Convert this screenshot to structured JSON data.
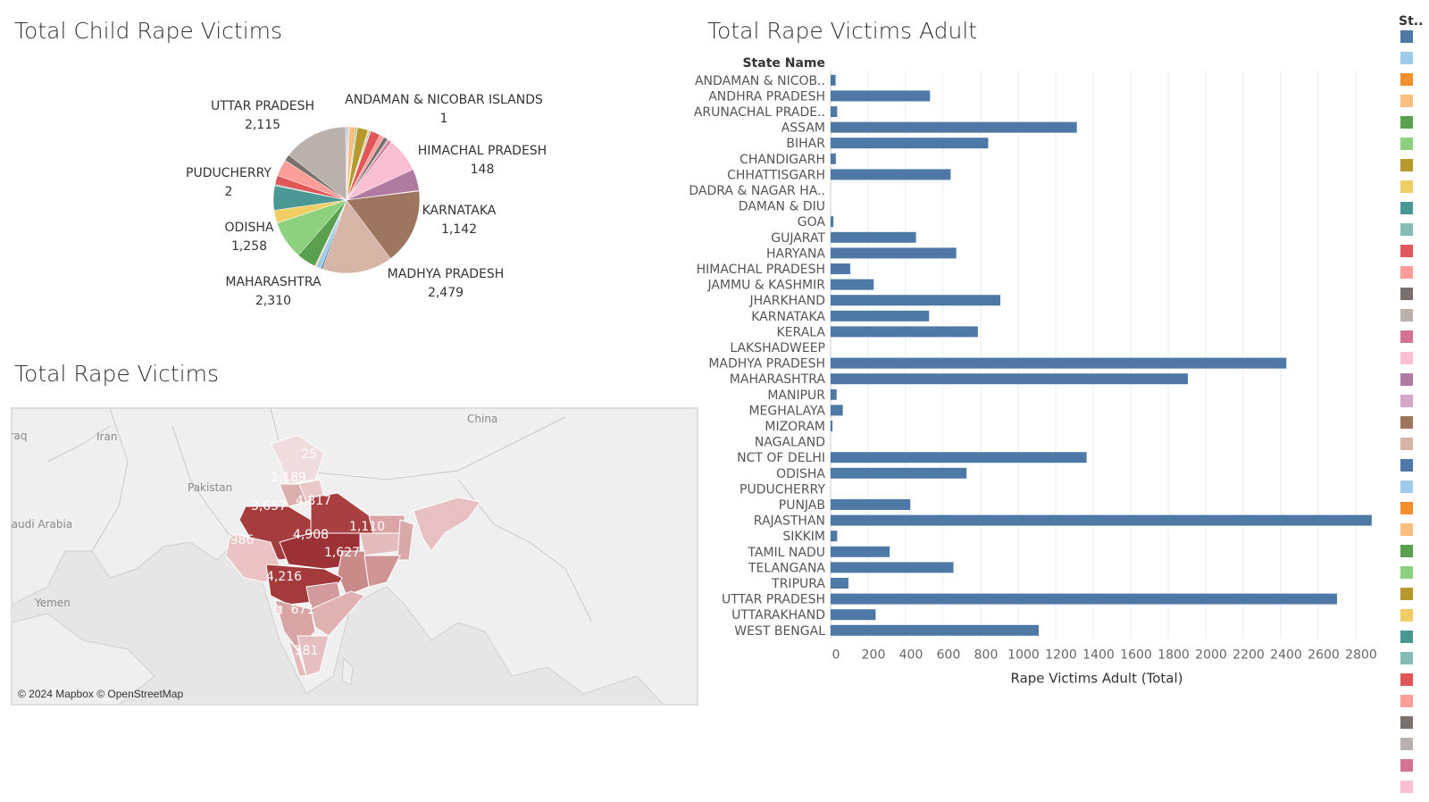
{
  "pie_title": "Total Child Rape Victims",
  "map_title": "Total Rape Victims",
  "bar_title": "Total Rape Victims Adult",
  "map": {
    "attribution": "© 2024 Mapbox © OpenStreetMap",
    "place_labels": [
      "Iraq",
      "Iran",
      "Pakistan",
      "China",
      "Saudi Arabia",
      "Yemen"
    ],
    "value_labels": [
      "1,189",
      "3,657",
      "4,817",
      "4,908",
      "986",
      "1,627",
      "4,216",
      "671",
      "1,110",
      "581",
      "25"
    ]
  },
  "legend": {
    "title": "St..",
    "colors": [
      "#4e79a7",
      "#a0cbe8",
      "#f28e2b",
      "#ffbe7d",
      "#59a14f",
      "#8cd17d",
      "#b6992d",
      "#f1ce63",
      "#499894",
      "#86bcb6",
      "#e15759",
      "#ff9d9a",
      "#79706e",
      "#bab0ac",
      "#d37295",
      "#fabfd2",
      "#b07aa1",
      "#d4a6c8",
      "#9d7660",
      "#d7b5a6",
      "#4e79a7",
      "#a0cbe8",
      "#f28e2b",
      "#ffbe7d",
      "#59a14f",
      "#8cd17d",
      "#b6992d",
      "#f1ce63",
      "#499894",
      "#86bcb6",
      "#e15759",
      "#ff9d9a",
      "#79706e",
      "#bab0ac",
      "#d37295",
      "#fabfd2"
    ]
  },
  "chart_data": [
    {
      "type": "pie",
      "title": "Total Child Rape Victims",
      "slices": [
        {
          "label": "ANDAMAN & NICOBAR ISLANDS",
          "value": 1,
          "color": "#4e79a7"
        },
        {
          "label": "",
          "value": 65,
          "color": "#a0cbe8"
        },
        {
          "label": "",
          "value": 25,
          "color": "#f28e2b"
        },
        {
          "label": "",
          "value": 200,
          "color": "#ffbe7d"
        },
        {
          "label": "",
          "value": 40,
          "color": "#59a14f"
        },
        {
          "label": "",
          "value": 25,
          "color": "#8cd17d"
        },
        {
          "label": "",
          "value": 350,
          "color": "#b6992d"
        },
        {
          "label": "",
          "value": 45,
          "color": "#f1ce63"
        },
        {
          "label": "",
          "value": 35,
          "color": "#499894"
        },
        {
          "label": "",
          "value": 15,
          "color": "#86bcb6"
        },
        {
          "label": "",
          "value": 320,
          "color": "#e15759"
        },
        {
          "label": "HIMACHAL PRADESH",
          "value": 148,
          "color": "#ff9d9a"
        },
        {
          "label": "",
          "value": 140,
          "color": "#79706e"
        },
        {
          "label": "",
          "value": 50,
          "color": "#bab0ac"
        },
        {
          "label": "",
          "value": 90,
          "color": "#d37295"
        },
        {
          "label": "KARNATAKA",
          "value": 1142,
          "color": "#fabfd2"
        },
        {
          "label": "",
          "value": 710,
          "color": "#b07aa1"
        },
        {
          "label": "",
          "value": 20,
          "color": "#d4a6c8"
        },
        {
          "label": "MADHYA PRADESH",
          "value": 2479,
          "color": "#9d7660"
        },
        {
          "label": "MAHARASHTRA",
          "value": 2310,
          "color": "#d7b5a6"
        },
        {
          "label": "",
          "value": 60,
          "color": "#4e79a7"
        },
        {
          "label": "",
          "value": 160,
          "color": "#a0cbe8"
        },
        {
          "label": "",
          "value": 30,
          "color": "#f28e2b"
        },
        {
          "label": "",
          "value": 20,
          "color": "#ffbe7d"
        },
        {
          "label": "",
          "value": 640,
          "color": "#59a14f"
        },
        {
          "label": "ODISHA",
          "value": 1258,
          "color": "#8cd17d"
        },
        {
          "label": "PUDUCHERRY",
          "value": 2,
          "color": "#b6992d"
        },
        {
          "label": "",
          "value": 420,
          "color": "#f1ce63"
        },
        {
          "label": "",
          "value": 800,
          "color": "#499894"
        },
        {
          "label": "",
          "value": 40,
          "color": "#86bcb6"
        },
        {
          "label": "",
          "value": 300,
          "color": "#e15759"
        },
        {
          "label": "",
          "value": 550,
          "color": "#ff9d9a"
        },
        {
          "label": "",
          "value": 210,
          "color": "#79706e"
        },
        {
          "label": "UTTAR PRADESH",
          "value": 2115,
          "color": "#bab0ac"
        },
        {
          "label": "",
          "value": 30,
          "color": "#d37295"
        }
      ],
      "labels_shown": [
        {
          "label": "ANDAMAN & NICOBAR ISLANDS",
          "value": "1"
        },
        {
          "label": "HIMACHAL PRADESH",
          "value": "148"
        },
        {
          "label": "KARNATAKA",
          "value": "1,142"
        },
        {
          "label": "MADHYA PRADESH",
          "value": "2,479"
        },
        {
          "label": "MAHARASHTRA",
          "value": "2,310"
        },
        {
          "label": "ODISHA",
          "value": "1,258"
        },
        {
          "label": "PUDUCHERRY",
          "value": "2"
        },
        {
          "label": "UTTAR PRADESH",
          "value": "2,115"
        }
      ]
    },
    {
      "type": "bar",
      "orientation": "horizontal",
      "title": "Total Rape Victims Adult",
      "row_header": "State Name",
      "xlabel": "Rape Victims Adult (Total)",
      "xlim": [
        0,
        3000
      ],
      "xticks": [
        0,
        200,
        400,
        600,
        800,
        1000,
        1200,
        1400,
        1600,
        1800,
        2000,
        2200,
        2400,
        2600,
        2800
      ],
      "color": "#4e79a7",
      "grid": true,
      "categories": [
        "ANDAMAN & NICOB..",
        "ANDHRA PRADESH",
        "ARUNACHAL PRADE..",
        "ASSAM",
        "BIHAR",
        "CHANDIGARH",
        "CHHATTISGARH",
        "DADRA & NAGAR HA..",
        "DAMAN & DIU",
        "GOA",
        "GUJARAT",
        "HARYANA",
        "HIMACHAL PRADESH",
        "JAMMU & KASHMIR",
        "JHARKHAND",
        "KARNATAKA",
        "KERALA",
        "LAKSHADWEEP",
        "MADHYA PRADESH",
        "MAHARASHTRA",
        "MANIPUR",
        "MEGHALAYA",
        "MIZORAM",
        "NAGALAND",
        "NCT OF DELHI",
        "ODISHA",
        "PUDUCHERRY",
        "PUNJAB",
        "RAJASTHAN",
        "SIKKIM",
        "TAMIL NADU",
        "TELANGANA",
        "TRIPURA",
        "UTTAR PRADESH",
        "UTTARAKHAND",
        "WEST BENGAL"
      ],
      "values": [
        27,
        530,
        35,
        1313,
        840,
        28,
        640,
        0,
        0,
        15,
        455,
        670,
        105,
        230,
        905,
        525,
        785,
        0,
        2430,
        1905,
        32,
        65,
        10,
        0,
        1365,
        725,
        0,
        425,
        2885,
        35,
        315,
        655,
        95,
        2700,
        240,
        1110
      ]
    }
  ]
}
